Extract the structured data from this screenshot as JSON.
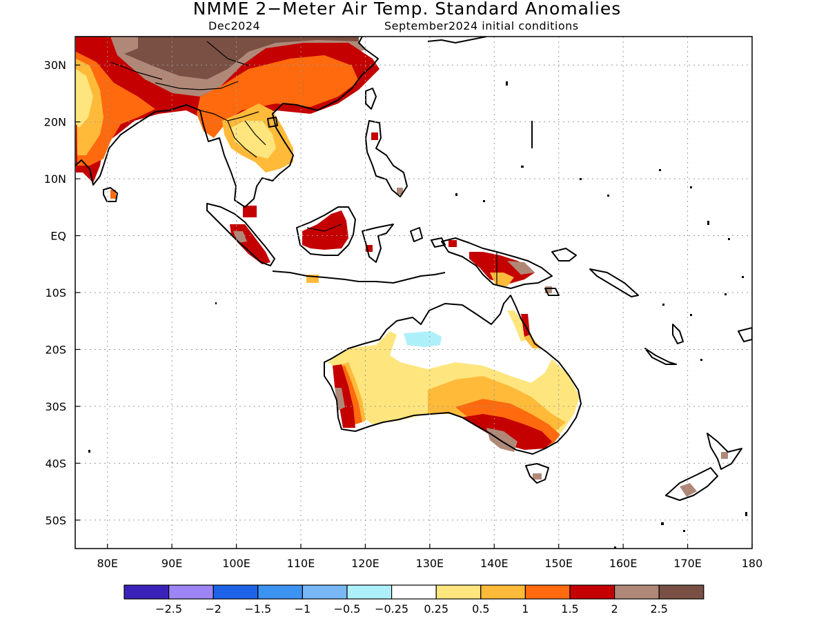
{
  "title": "NMME 2−Meter Air Temp. Standard Anomalies",
  "valid_month": "Dec2024",
  "initial_conditions": "September2024 initial conditions",
  "map": {
    "lon_range": [
      75,
      180
    ],
    "lat_range": [
      -55,
      35
    ],
    "lon_ticks": [
      {
        "value": 80,
        "label": "80E"
      },
      {
        "value": 90,
        "label": "90E"
      },
      {
        "value": 100,
        "label": "100E"
      },
      {
        "value": 110,
        "label": "110E"
      },
      {
        "value": 120,
        "label": "120E"
      },
      {
        "value": 130,
        "label": "130E"
      },
      {
        "value": 140,
        "label": "140E"
      },
      {
        "value": 150,
        "label": "150E"
      },
      {
        "value": 160,
        "label": "160E"
      },
      {
        "value": 170,
        "label": "170E"
      },
      {
        "value": 180,
        "label": "180"
      }
    ],
    "lat_ticks": [
      {
        "value": 30,
        "label": "30N"
      },
      {
        "value": 20,
        "label": "20N"
      },
      {
        "value": 10,
        "label": "10N"
      },
      {
        "value": 0,
        "label": "EQ"
      },
      {
        "value": -10,
        "label": "10S"
      },
      {
        "value": -20,
        "label": "20S"
      },
      {
        "value": -30,
        "label": "30S"
      },
      {
        "value": -40,
        "label": "40S"
      },
      {
        "value": -50,
        "label": "50S"
      }
    ],
    "grid": "dotted"
  },
  "legend": {
    "colors": [
      "#3a22b8",
      "#9d85f5",
      "#1f64e8",
      "#3d93f2",
      "#79b7f7",
      "#aef0fa",
      "#ffffff",
      "#ffe57d",
      "#ffba3a",
      "#ff6a0e",
      "#c40000",
      "#b08878",
      "#7a5044"
    ],
    "labels": [
      "−2.5",
      "−2",
      "−1.5",
      "−1",
      "−0.5",
      "−0.25",
      "0.25",
      "0.5",
      "1",
      "1.5",
      "2",
      "2.5"
    ]
  }
}
